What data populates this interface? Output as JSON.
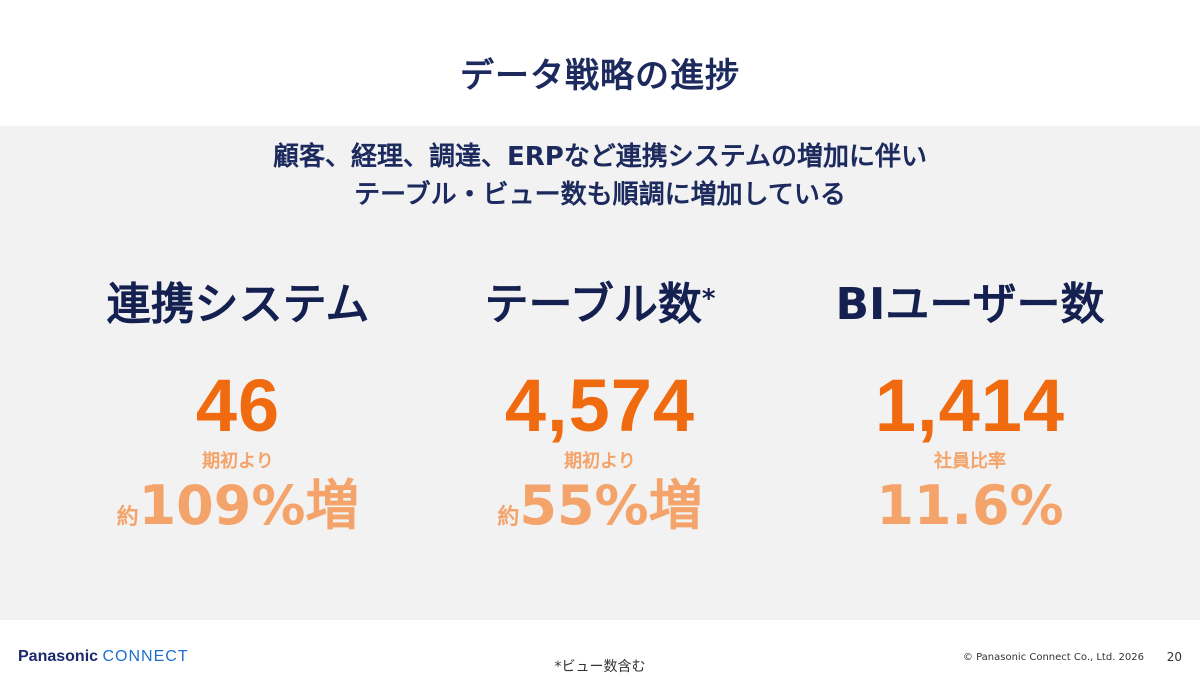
{
  "slide": {
    "title": "データ戦略の進捗",
    "lead_line1": "顧客、経理、調達、ERPなど連携システムの増加に伴い",
    "lead_line2": "テーブル・ビュー数も順調に増加している"
  },
  "metrics": [
    {
      "heading": "連携システム",
      "heading_mark": "",
      "value": "46",
      "sub_label": "期初より",
      "pct_prefix": "約",
      "pct_value": "109%増"
    },
    {
      "heading": "テーブル数",
      "heading_mark": "*",
      "value": "4,574",
      "sub_label": "期初より",
      "pct_prefix": "約",
      "pct_value": "55%増"
    },
    {
      "heading": "BIユーザー数",
      "heading_mark": "",
      "value": "1,414",
      "sub_label": "社員比率",
      "pct_prefix": "",
      "pct_value": "11.6%"
    }
  ],
  "footer": {
    "logo_brand": "Panasonic",
    "logo_connect": "CONNECT",
    "footnote": "*ビュー数含む",
    "copyright": "© Panasonic Connect Co., Ltd. 2026",
    "page_number": "20"
  },
  "colors": {
    "navy": "#1c2a5e",
    "orange": "#f06b0f",
    "light_orange": "#f4a46a",
    "panel_gray": "#f2f2f2"
  }
}
